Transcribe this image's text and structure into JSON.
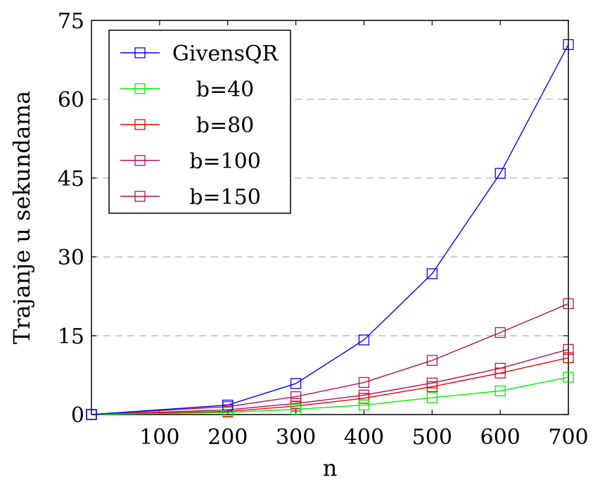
{
  "chart_data": {
    "type": "line",
    "xlabel": "n",
    "ylabel": "Trajanje u sekundama",
    "xlim": [
      0,
      700
    ],
    "ylim": [
      0,
      75
    ],
    "x_ticks": [
      100,
      200,
      300,
      400,
      500,
      600,
      700
    ],
    "y_ticks": [
      0,
      15,
      30,
      45,
      60,
      75
    ],
    "grid": "horizontal dashed",
    "legend_position": "top-left",
    "marker": "square",
    "x": [
      0,
      200,
      300,
      400,
      500,
      600,
      700
    ],
    "series": [
      {
        "name": "GivensQR",
        "color": "#0000ff",
        "values": [
          0,
          1.8,
          5.9,
          14.2,
          26.8,
          45.9,
          70.4
        ]
      },
      {
        "name": "b=40",
        "color": "#00ee00",
        "values": [
          0,
          0.4,
          1.0,
          1.8,
          3.2,
          4.5,
          7.1
        ]
      },
      {
        "name": "b=80",
        "color": "#ee0000",
        "values": [
          0,
          0.6,
          1.6,
          3.1,
          5.3,
          7.9,
          10.8
        ]
      },
      {
        "name": "b=100",
        "color": "#b0105e",
        "values": [
          0,
          0.9,
          2.1,
          3.7,
          6.0,
          8.8,
          12.4
        ]
      },
      {
        "name": "b=150",
        "color": "#b0104a",
        "values": [
          0,
          1.5,
          3.4,
          6.1,
          10.3,
          15.6,
          21.1
        ]
      }
    ]
  }
}
